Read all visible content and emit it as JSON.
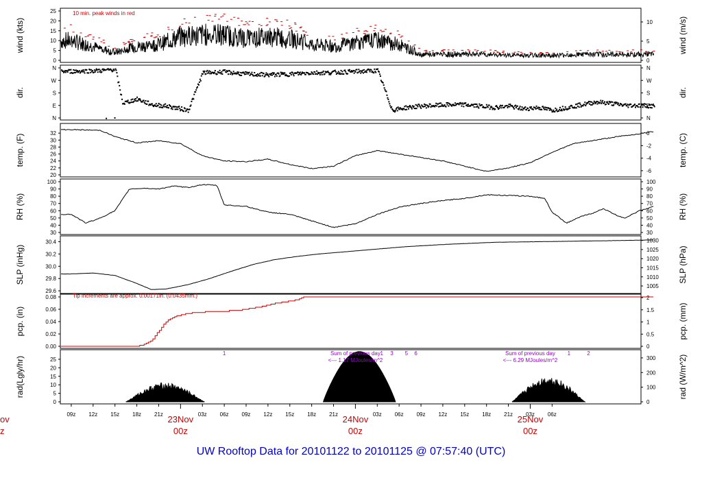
{
  "title": "UW Rooftop Data for 20101122  to  20101125 @ 07:57:40  (UTC)",
  "colors": {
    "text": "#000000",
    "red": "#cc0000",
    "purple": "#9900cc",
    "title": "#0000cc"
  },
  "chart_data": {
    "type": "line",
    "x_axis": {
      "hour_ticks": [
        "09z",
        "12z",
        "15z",
        "18z",
        "21z",
        "03z",
        "06z",
        "09z",
        "12z",
        "15z",
        "18z",
        "21z",
        "03z",
        "06z",
        "09z",
        "12z",
        "15z",
        "18z",
        "21z",
        "03z",
        "06z"
      ],
      "day_labels": [
        {
          "date": "23Nov",
          "time": "00z"
        },
        {
          "date": "24Nov",
          "time": "00z"
        },
        {
          "date": "25Nov",
          "time": "00z"
        }
      ],
      "left_cut_labels": [
        "ov",
        "z"
      ]
    },
    "panels": [
      {
        "key": "wind",
        "ylabel_left": "wind (kts)",
        "ylabel_right": "wind (m/s)",
        "left_ticks": [
          "0",
          "5",
          "10",
          "15",
          "20",
          "25"
        ],
        "left_range": [
          0,
          25
        ],
        "right_ticks": [
          "0",
          "5",
          "10"
        ],
        "right_range": [
          0,
          12.86
        ],
        "note": "10 min. peak winds in red"
      },
      {
        "key": "dir",
        "ylabel_left": "dir.",
        "ylabel_right": "dir.",
        "left_ticks": [
          "N",
          "E",
          "S",
          "W",
          "N"
        ],
        "right_ticks": [
          "N",
          "E",
          "S",
          "W",
          "N"
        ]
      },
      {
        "key": "temp",
        "ylabel_left": "temp. (F)",
        "ylabel_right": "temp. (C)",
        "left_ticks": [
          "20",
          "22",
          "24",
          "26",
          "28",
          "30",
          "32"
        ],
        "left_range": [
          20,
          34
        ],
        "right_ticks": [
          "-6",
          "-4",
          "-2",
          "0"
        ],
        "right_range": [
          -6.67,
          1.11
        ]
      },
      {
        "key": "rh",
        "ylabel_left": "RH (%)",
        "ylabel_right": "RH (%)",
        "left_ticks": [
          "30",
          "40",
          "50",
          "60",
          "70",
          "80",
          "90",
          "100"
        ],
        "left_range": [
          30,
          100
        ],
        "right_ticks": [
          "30",
          "40",
          "50",
          "60",
          "70",
          "80",
          "90",
          "100"
        ],
        "right_range": [
          30,
          100
        ]
      },
      {
        "key": "slp",
        "ylabel_left": "SLP (inHg)",
        "ylabel_right": "SLP (hPa)",
        "left_ticks": [
          "29.6",
          "29.8",
          "30.0",
          "30.2",
          "30.4"
        ],
        "left_range": [
          29.59,
          30.45
        ],
        "right_ticks": [
          "1005",
          "1010",
          "1015",
          "1020",
          "1025",
          "1030"
        ],
        "right_range": [
          1002,
          1031
        ]
      },
      {
        "key": "pcp",
        "ylabel_left": "pcp. (in)",
        "ylabel_right": "pcp. (mm)",
        "left_ticks": [
          "0.00",
          "0.02",
          "0.04",
          "0.06",
          "0.08"
        ],
        "left_range": [
          0,
          0.08
        ],
        "right_ticks": [
          "0",
          "0.5",
          "1",
          "1.5",
          "2"
        ],
        "right_range": [
          0,
          2.03
        ],
        "note": "Tip increments are approx. 0.00171in. (0.0435mm.)"
      },
      {
        "key": "rad",
        "ylabel_left": "rad(Lgly/hr)",
        "ylabel_right": "rad (W/m^2)",
        "left_ticks": [
          "0",
          "5",
          "10",
          "15",
          "20",
          "25"
        ],
        "left_range": [
          0,
          29
        ],
        "right_ticks": [
          "0",
          "100",
          "200",
          "300"
        ],
        "right_range": [
          0,
          337
        ],
        "annotations": [
          {
            "line1": "Sum of previous day",
            "line2": "<--- 1.17 MJoules/m^2",
            "hour": 39
          },
          {
            "line1": "Sum of previous day",
            "line2": "<--- 6.29 MJoules/m^2",
            "hour": 63
          }
        ],
        "number_markers": [
          {
            "label": "1",
            "hour": 21
          },
          {
            "label": "1",
            "hour": 42.6
          },
          {
            "label": "3",
            "hour": 44
          },
          {
            "label": "5",
            "hour": 46
          },
          {
            "label": "6",
            "hour": 47.3
          },
          {
            "label": "1",
            "hour": 68.3
          },
          {
            "label": "2",
            "hour": 71
          }
        ]
      }
    ],
    "series": {
      "temp_f": [
        [
          0,
          33.0
        ],
        [
          4,
          32.8
        ],
        [
          6,
          31.0
        ],
        [
          9,
          29.2
        ],
        [
          12,
          29.8
        ],
        [
          15,
          29.0
        ],
        [
          18,
          25.5
        ],
        [
          21,
          24.0
        ],
        [
          24,
          23.8
        ],
        [
          27,
          24.5
        ],
        [
          30,
          23.0
        ],
        [
          33,
          21.8
        ],
        [
          36,
          22.5
        ],
        [
          39,
          25.5
        ],
        [
          42,
          27.0
        ],
        [
          45,
          26.0
        ],
        [
          48,
          25.0
        ],
        [
          51,
          24.0
        ],
        [
          54,
          22.5
        ],
        [
          57,
          21.0
        ],
        [
          60,
          22.0
        ],
        [
          63,
          23.5
        ],
        [
          66,
          26.5
        ],
        [
          69,
          29.0
        ],
        [
          72,
          30.0
        ],
        [
          75,
          31.0
        ],
        [
          78,
          31.8
        ],
        [
          80,
          32.5
        ]
      ],
      "rh_pct": [
        [
          0,
          55
        ],
        [
          2,
          43
        ],
        [
          4,
          50
        ],
        [
          6,
          60
        ],
        [
          7,
          75
        ],
        [
          8,
          90
        ],
        [
          10,
          91
        ],
        [
          12,
          90
        ],
        [
          14,
          94
        ],
        [
          16,
          92
        ],
        [
          18,
          96
        ],
        [
          20,
          95
        ],
        [
          21,
          68
        ],
        [
          24,
          66
        ],
        [
          27,
          58
        ],
        [
          30,
          55
        ],
        [
          33,
          46
        ],
        [
          36,
          37
        ],
        [
          39,
          42
        ],
        [
          42,
          55
        ],
        [
          45,
          65
        ],
        [
          48,
          70
        ],
        [
          51,
          74
        ],
        [
          54,
          77
        ],
        [
          57,
          82
        ],
        [
          60,
          81
        ],
        [
          63,
          80
        ],
        [
          65,
          77
        ],
        [
          66,
          58
        ],
        [
          68,
          43
        ],
        [
          70,
          52
        ],
        [
          72,
          58
        ],
        [
          73,
          63
        ],
        [
          75,
          53
        ],
        [
          76,
          50
        ],
        [
          78,
          60
        ],
        [
          80,
          66
        ]
      ],
      "slp_inhg": [
        [
          0,
          29.875
        ],
        [
          3,
          29.89
        ],
        [
          6,
          29.85
        ],
        [
          9,
          29.72
        ],
        [
          11,
          29.62
        ],
        [
          13,
          29.63
        ],
        [
          16,
          29.7
        ],
        [
          19,
          29.8
        ],
        [
          22,
          29.92
        ],
        [
          25,
          30.03
        ],
        [
          28,
          30.11
        ],
        [
          31,
          30.16
        ],
        [
          34,
          30.2
        ],
        [
          40,
          30.26
        ],
        [
          46,
          30.32
        ],
        [
          52,
          30.36
        ],
        [
          58,
          30.39
        ],
        [
          64,
          30.4
        ],
        [
          70,
          30.41
        ],
        [
          76,
          30.42
        ],
        [
          80,
          30.43
        ]
      ],
      "pcp_in": [
        [
          0,
          0
        ],
        [
          9,
          0
        ],
        [
          10,
          0.0034
        ],
        [
          11,
          0.0085
        ],
        [
          12,
          0.025
        ],
        [
          13,
          0.04
        ],
        [
          14,
          0.047
        ],
        [
          15,
          0.051
        ],
        [
          17,
          0.055
        ],
        [
          23,
          0.058
        ],
        [
          26,
          0.064
        ],
        [
          28,
          0.07
        ],
        [
          30,
          0.073
        ],
        [
          31,
          0.076
        ],
        [
          32,
          0.08
        ],
        [
          80,
          0.08
        ]
      ],
      "rad_lgly": [
        {
          "start": 7.5,
          "end": 18.3,
          "peak": 9.5
        },
        {
          "start": 34.6,
          "end": 44.5,
          "peak": 29.5
        },
        {
          "start": 60.5,
          "end": 70.5,
          "peak": 12.5
        }
      ],
      "wind_kts_mean": [
        [
          0,
          10
        ],
        [
          3,
          7
        ],
        [
          6,
          4
        ],
        [
          9,
          7
        ],
        [
          12,
          8
        ],
        [
          15,
          12
        ],
        [
          18,
          13
        ],
        [
          21,
          13
        ],
        [
          24,
          11
        ],
        [
          27,
          12
        ],
        [
          30,
          11
        ],
        [
          33,
          8
        ],
        [
          36,
          7
        ],
        [
          39,
          9
        ],
        [
          42,
          10
        ],
        [
          45,
          8
        ],
        [
          48,
          3
        ],
        [
          51,
          3
        ],
        [
          54,
          3
        ],
        [
          57,
          3
        ],
        [
          60,
          2.5
        ],
        [
          63,
          2.5
        ],
        [
          66,
          2.5
        ],
        [
          69,
          3
        ],
        [
          72,
          3
        ],
        [
          75,
          3
        ],
        [
          78,
          3
        ],
        [
          80,
          3
        ]
      ],
      "dir_deg": [
        [
          0,
          340
        ],
        [
          4,
          345
        ],
        [
          6,
          355
        ],
        [
          7,
          110
        ],
        [
          9,
          140
        ],
        [
          11,
          100
        ],
        [
          13,
          90
        ],
        [
          15,
          70
        ],
        [
          16,
          60
        ],
        [
          18,
          330
        ],
        [
          21,
          335
        ],
        [
          24,
          320
        ],
        [
          27,
          315
        ],
        [
          30,
          320
        ],
        [
          33,
          330
        ],
        [
          35,
          330
        ],
        [
          42,
          345
        ],
        [
          44,
          60
        ],
        [
          46,
          80
        ],
        [
          48,
          90
        ],
        [
          50,
          95
        ],
        [
          52,
          100
        ],
        [
          54,
          100
        ],
        [
          56,
          90
        ],
        [
          58,
          80
        ],
        [
          60,
          90
        ],
        [
          62,
          70
        ],
        [
          64,
          80
        ],
        [
          66,
          60
        ],
        [
          68,
          80
        ],
        [
          70,
          100
        ],
        [
          72,
          120
        ],
        [
          74,
          110
        ],
        [
          76,
          95
        ],
        [
          78,
          95
        ],
        [
          80,
          90
        ]
      ]
    }
  }
}
